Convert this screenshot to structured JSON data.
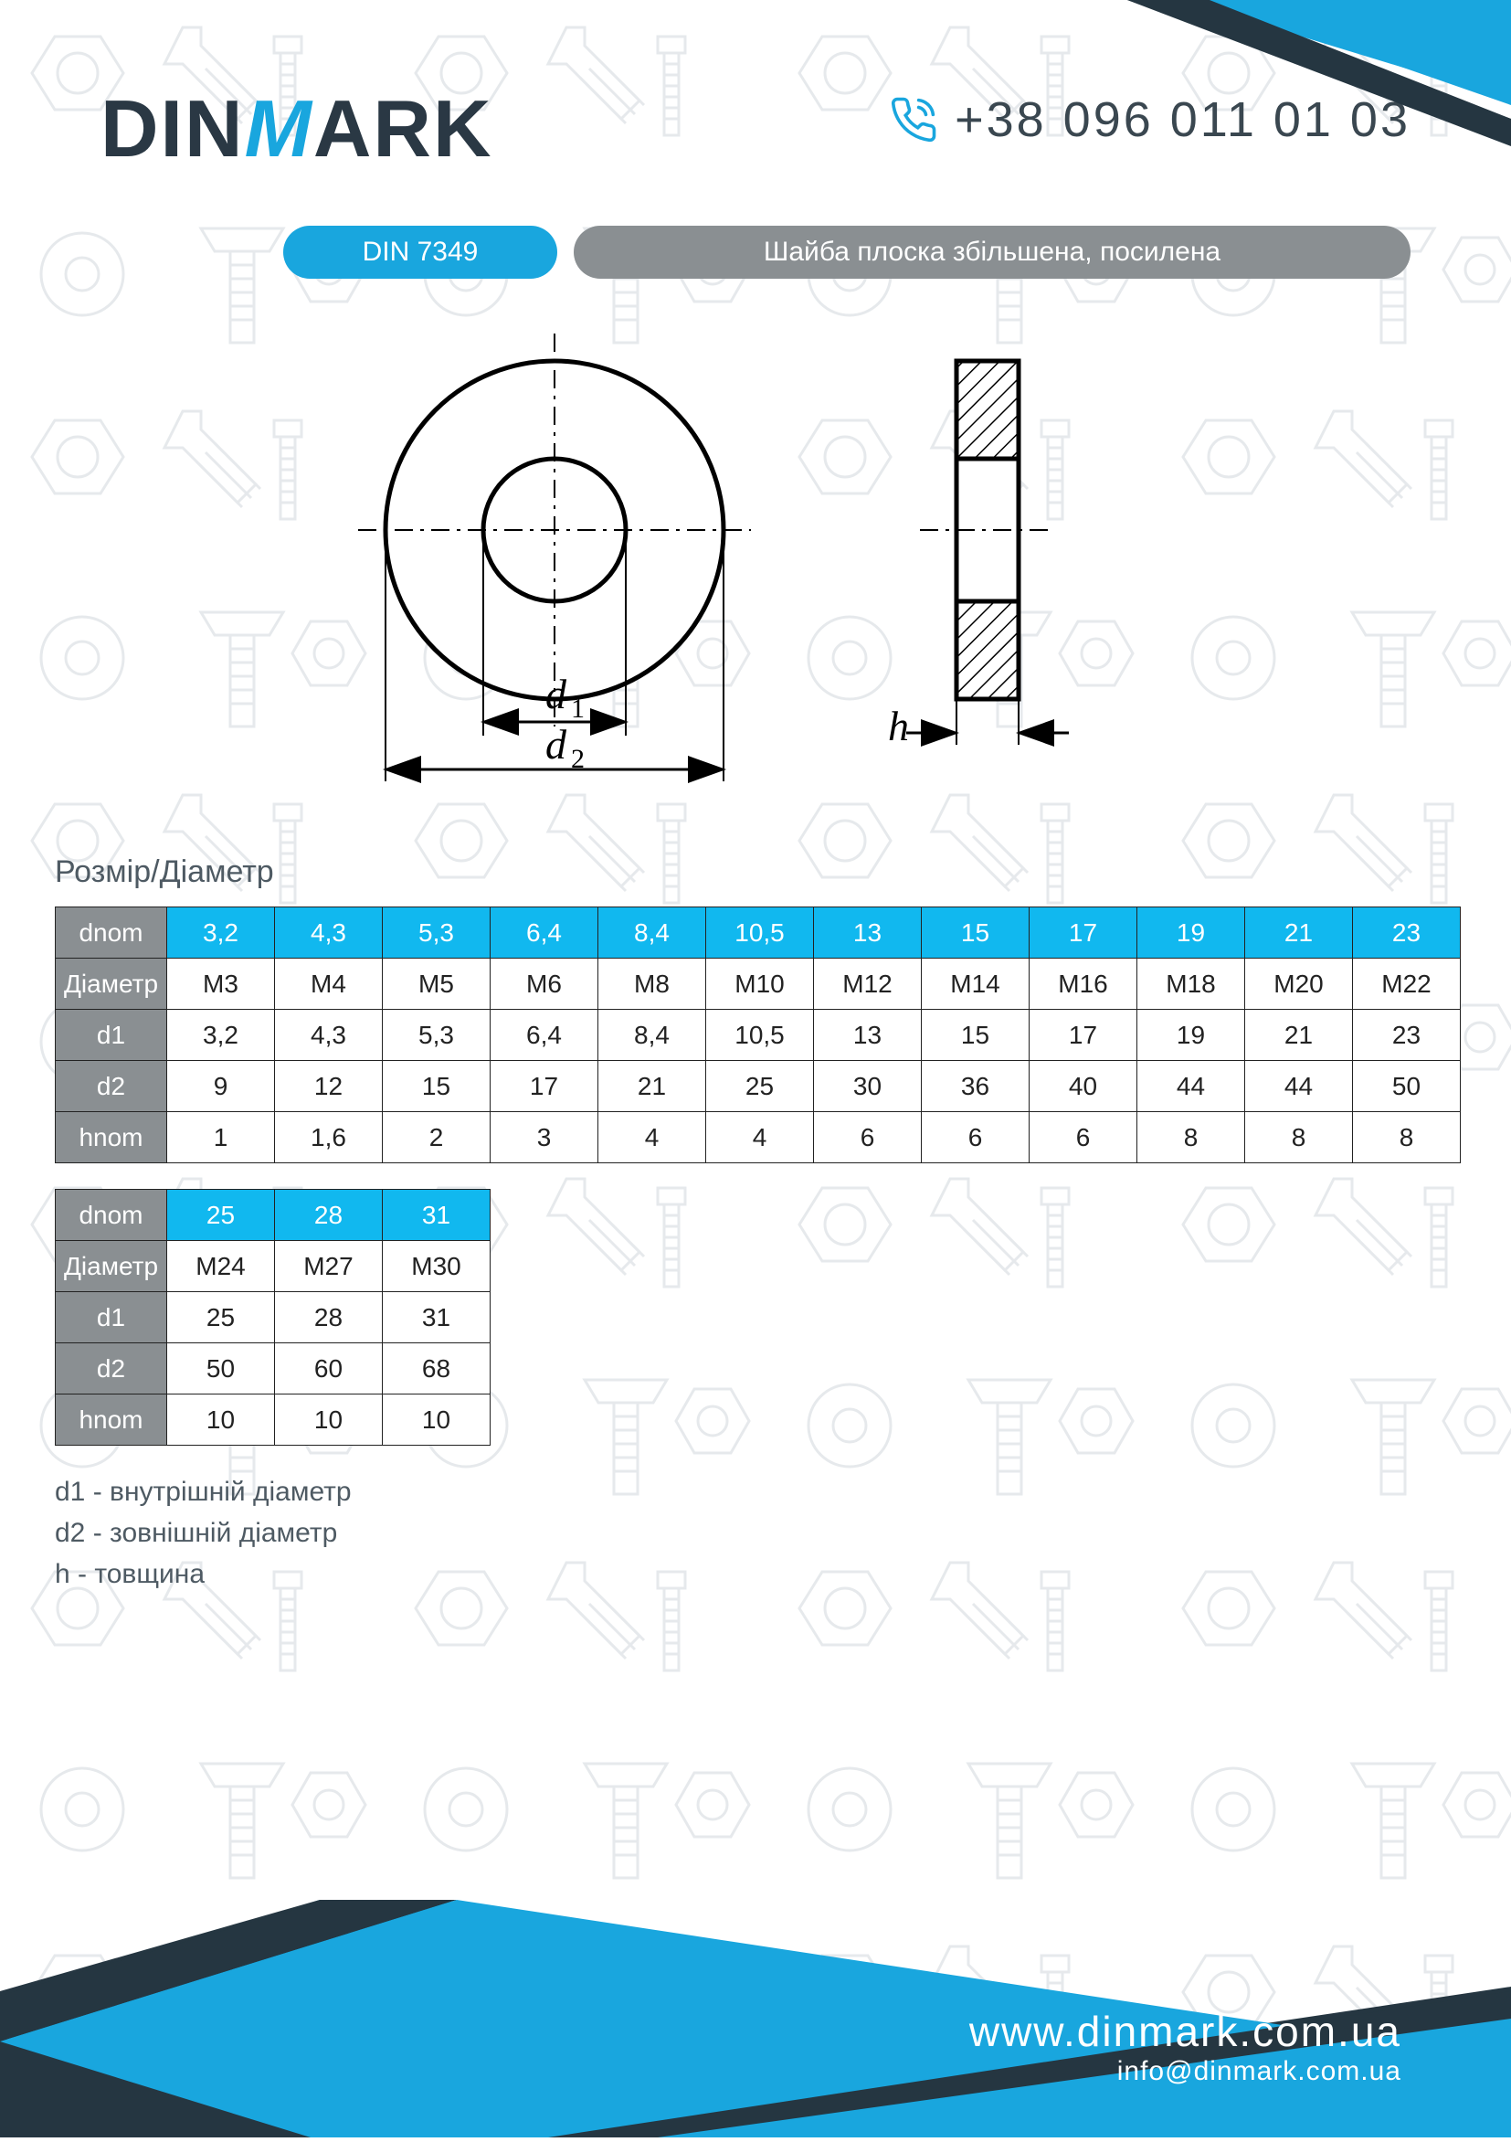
{
  "brand": {
    "pre": "DIN",
    "m": "M",
    "post": "ARK"
  },
  "phone": "+38 096 011 01 03",
  "product_code": "DIN 7349",
  "product_title": "Шайба плоска збільшена, посилена",
  "section_label": "Розмір/Діаметр",
  "colors": {
    "accent": "#19a6de",
    "blue_cell": "#11b8ef",
    "grey_pill": "#8a8f92",
    "grey_hdr": "#8a8f92",
    "dark": "#2a3844",
    "text_muted": "#4e5a63",
    "footer_dark": "#253641"
  },
  "diagram": {
    "labels": {
      "d1": "d",
      "d1_sub": "1",
      "d2": "d",
      "d2_sub": "2",
      "h": "h"
    }
  },
  "row_headers": [
    "dnom",
    "Діаметр",
    "d1",
    "d2",
    "hnom"
  ],
  "table1": {
    "dnom": [
      "3,2",
      "4,3",
      "5,3",
      "6,4",
      "8,4",
      "10,5",
      "13",
      "15",
      "17",
      "19",
      "21",
      "23"
    ],
    "diam": [
      "M3",
      "M4",
      "M5",
      "M6",
      "M8",
      "M10",
      "M12",
      "M14",
      "M16",
      "M18",
      "M20",
      "M22"
    ],
    "d1": [
      "3,2",
      "4,3",
      "5,3",
      "6,4",
      "8,4",
      "10,5",
      "13",
      "15",
      "17",
      "19",
      "21",
      "23"
    ],
    "d2": [
      "9",
      "12",
      "15",
      "17",
      "21",
      "25",
      "30",
      "36",
      "40",
      "44",
      "44",
      "50"
    ],
    "hnom": [
      "1",
      "1,6",
      "2",
      "3",
      "4",
      "4",
      "6",
      "6",
      "6",
      "8",
      "8",
      "8"
    ]
  },
  "table2": {
    "dnom": [
      "25",
      "28",
      "31"
    ],
    "diam": [
      "M24",
      "M27",
      "M30"
    ],
    "d1": [
      "25",
      "28",
      "31"
    ],
    "d2": [
      "50",
      "60",
      "68"
    ],
    "hnom": [
      "10",
      "10",
      "10"
    ]
  },
  "legend": [
    "d1 - внутрішній діаметр",
    "d2 - зовнішній діаметр",
    "h - товщина"
  ],
  "footer": {
    "url": "www.dinmark.com.ua",
    "email": "info@dinmark.com.ua"
  }
}
